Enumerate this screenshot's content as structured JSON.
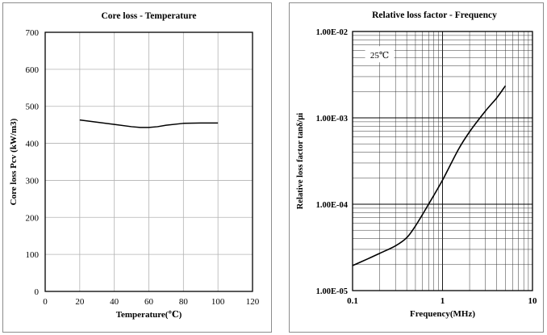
{
  "chart_data": [
    {
      "type": "line",
      "title": "Core loss - Temperature",
      "xlabel": "Temperature(℃)",
      "ylabel": "Core loss Pcv (kW/m3)",
      "xlim": [
        0,
        120
      ],
      "ylim": [
        0,
        700
      ],
      "xticks": [
        0,
        20,
        40,
        60,
        80,
        100,
        120
      ],
      "yticks": [
        0,
        100,
        200,
        300,
        400,
        500,
        600,
        700
      ],
      "grid": true,
      "series": [
        {
          "x": [
            20,
            30,
            40,
            50,
            55,
            60,
            65,
            70,
            80,
            90,
            100
          ],
          "y": [
            463,
            457,
            451,
            445,
            443,
            443,
            445,
            449,
            454,
            455,
            455
          ]
        }
      ]
    },
    {
      "type": "line",
      "title": "Relative loss factor - Frequency",
      "xlabel": "Frequency(MHz)",
      "ylabel": "Relative loss factor tanδ/μi",
      "xscale": "log",
      "yscale": "log",
      "xlim": [
        0.1,
        10
      ],
      "ylim": [
        1e-05,
        0.01
      ],
      "xticks": [
        0.1,
        1,
        10
      ],
      "xtick_labels": [
        "0.1",
        "1",
        "10"
      ],
      "yticks": [
        1e-05,
        0.0001,
        0.001,
        0.01
      ],
      "ytick_labels": [
        "1.00E-05",
        "1.00E-04",
        "1.00E-03",
        "1.00E-02"
      ],
      "grid": true,
      "annotation": "25℃",
      "series": [
        {
          "x": [
            0.1,
            0.15,
            0.2,
            0.3,
            0.4,
            0.5,
            0.7,
            1.0,
            1.5,
            2.0,
            3.0,
            4.0,
            5.0
          ],
          "y": [
            1.95e-05,
            2.35e-05,
            2.7e-05,
            3.3e-05,
            4.1e-05,
            5.6e-05,
            0.0001,
            0.00019,
            0.00043,
            0.00069,
            0.0012,
            0.0017,
            0.00235
          ]
        }
      ]
    }
  ]
}
